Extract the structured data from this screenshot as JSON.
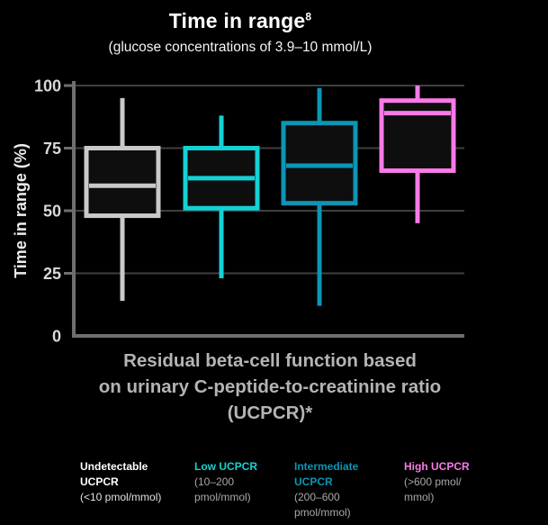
{
  "chart_data": {
    "type": "boxplot",
    "title": "Time in range",
    "title_superscript": "8",
    "subtitle": "(glucose concentrations of 3.9–10 mmol/L)",
    "ylabel": "Time in range (%)",
    "ylim": [
      0,
      100
    ],
    "yticks": [
      0,
      25,
      50,
      75,
      100
    ],
    "grid": true,
    "xlabel_lines": [
      "Residual beta-cell function based",
      "on urinary C-peptide-to-creatinine ratio",
      "(UCPCR)*"
    ],
    "categories": [
      "Undetectable UCPCR (<10 pmol/mmol)",
      "Low UCPCR (10–200 pmol/mmol)",
      "Intermediate UCPCR (200–600 pmol/mmol)",
      "High UCPCR (>600 pmol/mmol)"
    ],
    "series": [
      {
        "name": "Undetectable UCPCR",
        "color": "#c9c9c9",
        "min": 14,
        "q1": 48,
        "median": 60,
        "q3": 75,
        "max": 95
      },
      {
        "name": "Low UCPCR",
        "color": "#13d2d6",
        "min": 23,
        "q1": 51,
        "median": 63,
        "q3": 75,
        "max": 88
      },
      {
        "name": "Intermediate UCPCR",
        "color": "#0d95b4",
        "min": 12,
        "q1": 53,
        "median": 68,
        "q3": 85,
        "max": 99
      },
      {
        "name": "High UCPCR",
        "color": "#f87ae8",
        "min": 45,
        "q1": 66,
        "median": 89,
        "q3": 94,
        "max": 100
      }
    ],
    "colors": {
      "background": "#000000",
      "gridline": "#3f3f3f",
      "axis": "#6e6e6e",
      "tick_label": "#d9d9d9",
      "box_fill": "#0e0e0e"
    }
  },
  "legend": {
    "items": [
      {
        "header_lines": [
          "Undetectable",
          "UCPCR"
        ],
        "sub_lines": [
          "(<10 pmol/mmol)"
        ],
        "color": "#ffffff",
        "sub_color": "#e2e2e2"
      },
      {
        "header_lines": [
          "Low UCPCR"
        ],
        "sub_lines": [
          "(10–200",
          "pmol/mmol)"
        ],
        "color": "#13d2d6",
        "sub_color": "#a9a9a9"
      },
      {
        "header_lines": [
          "Intermediate",
          "UCPCR"
        ],
        "sub_lines": [
          "(200–600",
          "pmol/mmol)"
        ],
        "color": "#0d95b4",
        "sub_color": "#a9a9a9"
      },
      {
        "header_lines": [
          "High UCPCR"
        ],
        "sub_lines": [
          "(>600 pmol/",
          "mmol)"
        ],
        "color": "#f87ae8",
        "sub_color": "#a9a9a9"
      }
    ]
  }
}
